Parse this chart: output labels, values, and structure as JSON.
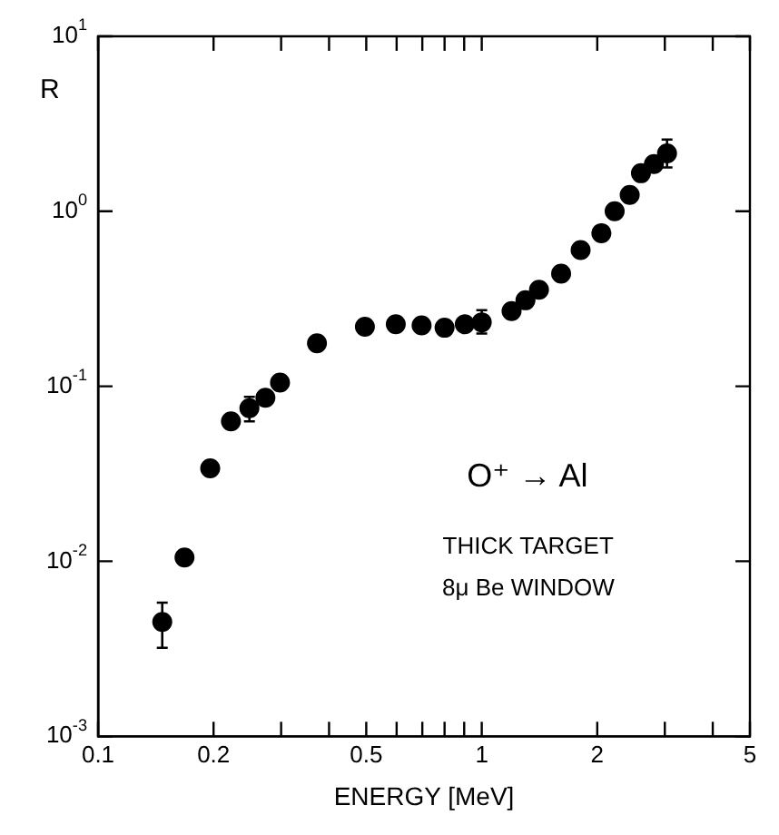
{
  "chart_data": {
    "type": "scatter",
    "xlabel": "ENERGY [MeV]",
    "ylabel": "R",
    "log": "xy",
    "grid": false,
    "legend": false,
    "marker": "circle",
    "x": [
      0.147,
      0.168,
      0.196,
      0.222,
      0.248,
      0.273,
      0.298,
      0.372,
      0.496,
      0.597,
      0.697,
      0.8,
      0.903,
      1.0,
      1.196,
      1.3,
      1.41,
      1.61,
      1.81,
      2.05,
      2.22,
      2.43,
      2.6,
      2.81,
      3.04
    ],
    "series": [
      {
        "color": "#000000",
        "values": [
          0.0045,
          0.0105,
          0.034,
          0.063,
          0.075,
          0.086,
          0.105,
          0.176,
          0.219,
          0.226,
          0.223,
          0.216,
          0.226,
          0.232,
          0.269,
          0.31,
          0.356,
          0.44,
          0.6,
          0.75,
          1.0,
          1.24,
          1.65,
          1.86,
          2.14
        ],
        "errors": [
          [
            0.0032,
            0.0058
          ],
          null,
          null,
          null,
          [
            0.063,
            0.087
          ],
          null,
          null,
          null,
          null,
          null,
          null,
          null,
          null,
          [
            0.2,
            0.272
          ],
          null,
          null,
          null,
          null,
          null,
          null,
          null,
          null,
          null,
          null,
          [
            1.78,
            2.57
          ]
        ]
      }
    ],
    "xlim": [
      0.1,
      5
    ],
    "ylim": [
      0.001,
      10
    ],
    "xticks": [
      0.1,
      0.2,
      {
        "value": 0.3,
        "label": null
      },
      {
        "value": 0.4,
        "label": null
      },
      0.5,
      {
        "value": 0.6,
        "label": null
      },
      {
        "value": 0.7,
        "label": null
      },
      {
        "value": 0.8,
        "label": null
      },
      {
        "value": 0.9,
        "label": null
      },
      1,
      2,
      {
        "value": 3,
        "label": null
      },
      {
        "value": 4,
        "label": null
      },
      5
    ],
    "yticks": [
      {
        "value": 0.001,
        "label": "10$^{-3}$"
      },
      {
        "value": 0.01,
        "label": "10$^{-2}$"
      },
      {
        "value": 0.1,
        "label": "10$^{-1}$"
      },
      {
        "value": 1,
        "label": "10$^{0}$"
      },
      {
        "value": 10,
        "label": "10$^{1}$"
      }
    ],
    "annotations": [
      "O⁺ → Al",
      "THICK TARGET",
      "8μ Be WINDOW"
    ]
  }
}
